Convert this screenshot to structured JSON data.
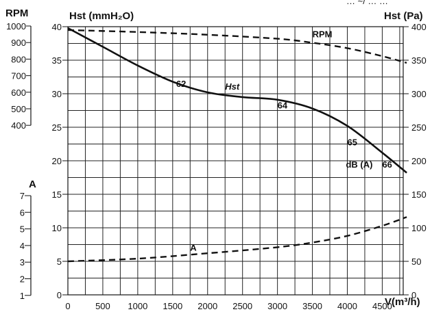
{
  "header_fragment": "… ~/ … …",
  "chart_data": {
    "type": "line",
    "x": {
      "label": "V(m³/h)",
      "range": [
        0,
        4800
      ],
      "ticks": [
        0,
        500,
        1000,
        1500,
        2000,
        2500,
        3000,
        3500,
        4000,
        4500
      ]
    },
    "axes": {
      "rpm": {
        "label": "RPM",
        "ticks": [
          1000,
          900,
          800,
          700,
          600,
          500,
          400
        ]
      },
      "hst_mm": {
        "label": "Hst (mmH₂O)",
        "range": [
          0,
          40
        ],
        "ticks": [
          0,
          5,
          10,
          15,
          20,
          25,
          30,
          35,
          40
        ]
      },
      "hst_pa": {
        "label": "Hst (Pa)",
        "range": [
          0,
          400
        ],
        "ticks": [
          0,
          50,
          100,
          150,
          200,
          250,
          300,
          350,
          400
        ]
      },
      "amp": {
        "label": "A",
        "ticks": [
          7,
          6,
          5,
          4,
          3,
          2,
          1
        ]
      }
    },
    "grid": true,
    "series": [
      {
        "name": "Hst",
        "style": "solid",
        "x": [
          0,
          500,
          1000,
          1500,
          2000,
          2500,
          3000,
          3500,
          4000,
          4500,
          4850
        ],
        "y_mmH2O": [
          39.8,
          37.0,
          34.2,
          31.8,
          30.2,
          29.5,
          29.1,
          27.8,
          25.2,
          21.2,
          18.2
        ]
      },
      {
        "name": "RPM",
        "style": "dashed",
        "x": [
          0,
          1000,
          2000,
          3000,
          3500,
          4000,
          4500,
          4850
        ],
        "y_mmH2O": [
          39.5,
          39.2,
          38.8,
          38.2,
          37.6,
          36.8,
          35.6,
          34.6
        ]
      },
      {
        "name": "A",
        "style": "dashed",
        "x": [
          0,
          1000,
          2000,
          3000,
          3500,
          4000,
          4500,
          4850
        ],
        "y_mmH2O": [
          5.0,
          5.4,
          6.2,
          7.1,
          7.8,
          8.8,
          10.3,
          11.6
        ]
      }
    ],
    "annotations": [
      {
        "text": "62",
        "x": 1550,
        "y": 31.0
      },
      {
        "text": "Hst",
        "x": 2250,
        "y": 30.6,
        "italic": true
      },
      {
        "text": "64",
        "x": 3000,
        "y": 27.8
      },
      {
        "text": "65",
        "x": 4000,
        "y": 22.3
      },
      {
        "text": "dB (A)",
        "x": 3980,
        "y": 19.0
      },
      {
        "text": "66",
        "x": 4500,
        "y": 19.0
      },
      {
        "text": "RPM",
        "x": 3500,
        "y": 38.4
      },
      {
        "text": "A",
        "x": 1750,
        "y": 6.6
      }
    ]
  }
}
